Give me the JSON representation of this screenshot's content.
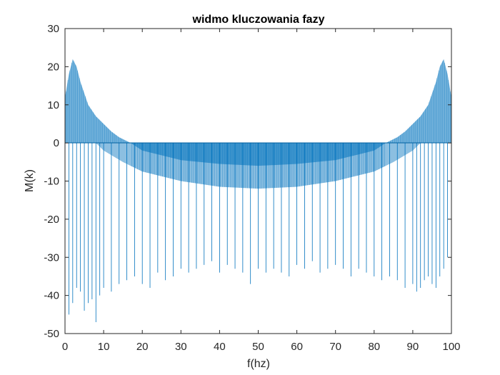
{
  "chart_data": {
    "type": "bar",
    "title": "widmo kluczowania fazy",
    "xlabel": "f(hz)",
    "ylabel": "M(k)",
    "xlim": [
      0,
      100
    ],
    "ylim": [
      -50,
      30
    ],
    "xticks": [
      "0",
      "10",
      "20",
      "30",
      "40",
      "50",
      "60",
      "70",
      "80",
      "90",
      "100"
    ],
    "yticks": [
      "30",
      "20",
      "10",
      "0",
      "-10",
      "-20",
      "-30",
      "-40",
      "-50"
    ],
    "grid": false,
    "color": "#0072bd",
    "series": [
      {
        "x": [
          1,
          2,
          3,
          4,
          5,
          6,
          7,
          8,
          9,
          10,
          12,
          14,
          16,
          18,
          20,
          22,
          24,
          26,
          28,
          30,
          32,
          34,
          36,
          38,
          40,
          42,
          44,
          46,
          48,
          50,
          52,
          54,
          56,
          58,
          60,
          62,
          64,
          66,
          68,
          70,
          72,
          74,
          76,
          78,
          80,
          82,
          84,
          86,
          88,
          90,
          91,
          92,
          93,
          94,
          95,
          96,
          97,
          98,
          99,
          100
        ],
        "values": [
          -45,
          -42,
          -38,
          -39,
          -44,
          -42,
          -41,
          -47,
          -40,
          -38,
          -39,
          -37,
          -36,
          -35,
          -37,
          -38,
          -34,
          -36,
          -35,
          -33,
          -34,
          -33,
          -32,
          -31,
          -34,
          -32,
          -33,
          -34,
          -37,
          -33,
          -34,
          -33,
          -34,
          -35,
          -32,
          -33,
          -31,
          -34,
          -33,
          -32,
          -33,
          -35,
          -33,
          -34,
          -35,
          -36,
          -35,
          -36,
          -38,
          -37,
          -39,
          -38,
          -36,
          -35,
          -37,
          -38,
          -35,
          -33,
          -30,
          -27
        ]
      }
    ],
    "envelope_upper": {
      "x": [
        0,
        1,
        2,
        3,
        4,
        6,
        8,
        10,
        12,
        14,
        16,
        17,
        20,
        30,
        40,
        50,
        60,
        70,
        80,
        83,
        84,
        86,
        88,
        90,
        92,
        94,
        96,
        97,
        98,
        99,
        100
      ],
      "values": [
        12,
        18,
        22,
        20,
        16,
        10,
        7,
        5,
        3,
        1.5,
        0.5,
        0,
        -2,
        -4.5,
        -5.5,
        -6,
        -5.5,
        -4.5,
        -2,
        0,
        0.5,
        1.5,
        3,
        5,
        7,
        10,
        16,
        20,
        22,
        18,
        12
      ]
    },
    "envelope_lower": {
      "x": [
        8,
        10,
        15,
        20,
        30,
        40,
        50,
        60,
        70,
        80,
        85,
        90,
        92
      ],
      "values": [
        0,
        -2,
        -5,
        -7.5,
        -10,
        -11.5,
        -12,
        -11.5,
        -10,
        -7.5,
        -5,
        -2,
        0
      ]
    }
  }
}
